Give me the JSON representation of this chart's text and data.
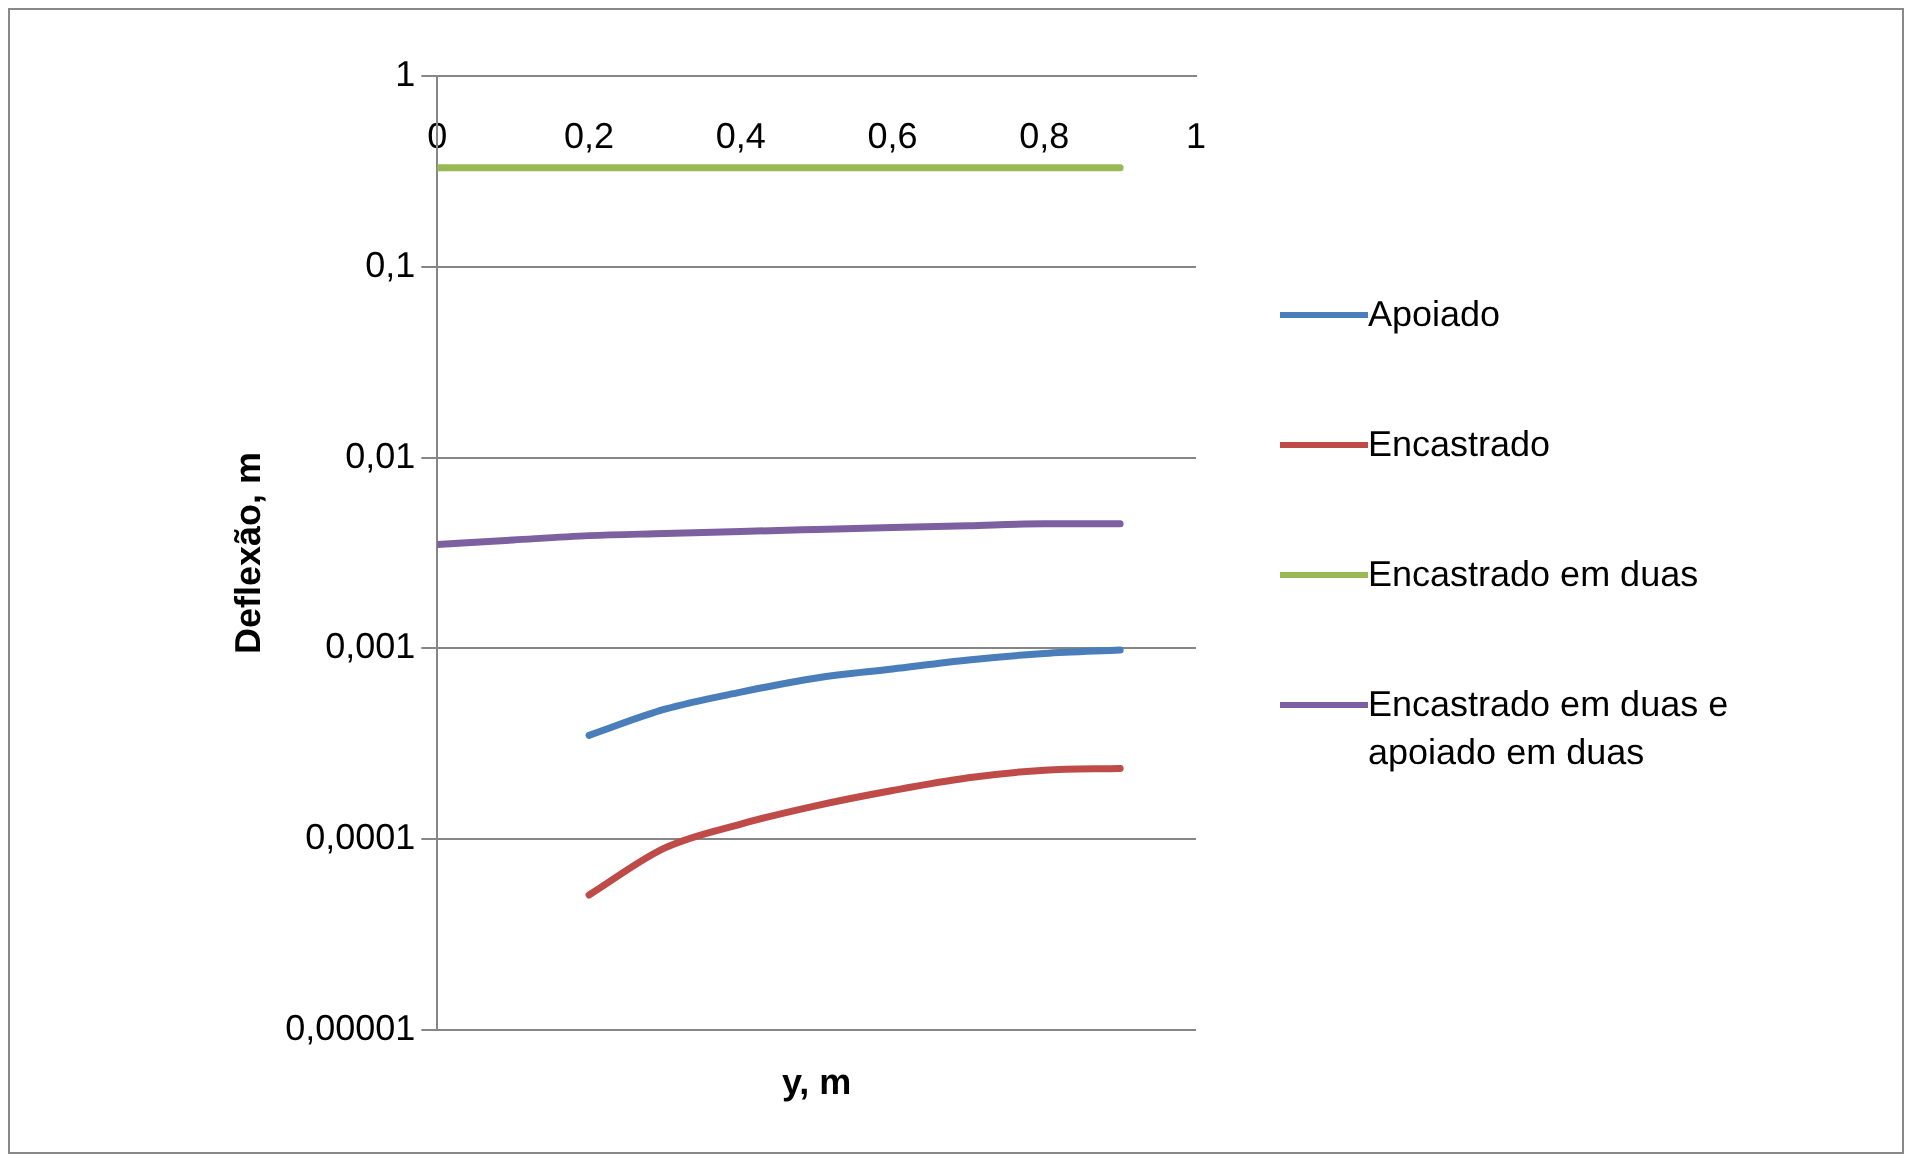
{
  "chart_data": {
    "type": "line",
    "xlabel": "y, m",
    "ylabel": "Deflexão, m",
    "log": "y",
    "grid": "y",
    "legend": "right",
    "marker": "none",
    "line_style": "solid",
    "xlim": [
      0,
      1
    ],
    "xticks": [
      0,
      {
        "value": 0.2,
        "label": "0,2"
      },
      {
        "value": 0.4,
        "label": "0,4"
      },
      {
        "value": 0.6,
        "label": "0,6"
      },
      {
        "value": 0.8,
        "label": "0,8"
      },
      1
    ],
    "ylim": [
      1e-05,
      1
    ],
    "yticks": [
      {
        "value": 1e-05,
        "label": "0,00001"
      },
      {
        "value": 0.0001,
        "label": "0,0001"
      },
      {
        "value": 0.001,
        "label": "0,001"
      },
      {
        "value": 0.01,
        "label": "0,01"
      },
      {
        "value": 0.1,
        "label": "0,1"
      },
      1
    ],
    "series": [
      {
        "name": "Apoiado",
        "color": "#4a7ebb",
        "x": [
          0.2,
          0.3,
          0.4,
          0.5,
          0.6,
          0.7,
          0.8,
          0.9
        ],
        "values": [
          0.00035,
          0.00048,
          0.00059,
          0.0007,
          0.00078,
          0.00087,
          0.00094,
          0.00098
        ]
      },
      {
        "name": "Encastrado",
        "color": "#be4b48",
        "x": [
          0.2,
          0.3,
          0.4,
          0.5,
          0.6,
          0.7,
          0.8,
          0.9
        ],
        "values": [
          5.1e-05,
          9e-05,
          0.00012,
          0.00015,
          0.00018,
          0.00021,
          0.00023,
          0.000235
        ]
      },
      {
        "name": "Encastrado em duas",
        "color": "#98b954",
        "x": [
          0,
          0.9
        ],
        "values": [
          0.33,
          0.33
        ]
      },
      {
        "name": "Encastrado em duas e apoiado em duas",
        "color": "#7d60a0",
        "x": [
          0,
          0.1,
          0.2,
          0.3,
          0.4,
          0.5,
          0.6,
          0.7,
          0.8,
          0.9
        ],
        "values": [
          0.0035,
          0.0037,
          0.0039,
          0.004,
          0.0041,
          0.0042,
          0.0043,
          0.0044,
          0.0045,
          0.0045
        ]
      }
    ]
  }
}
